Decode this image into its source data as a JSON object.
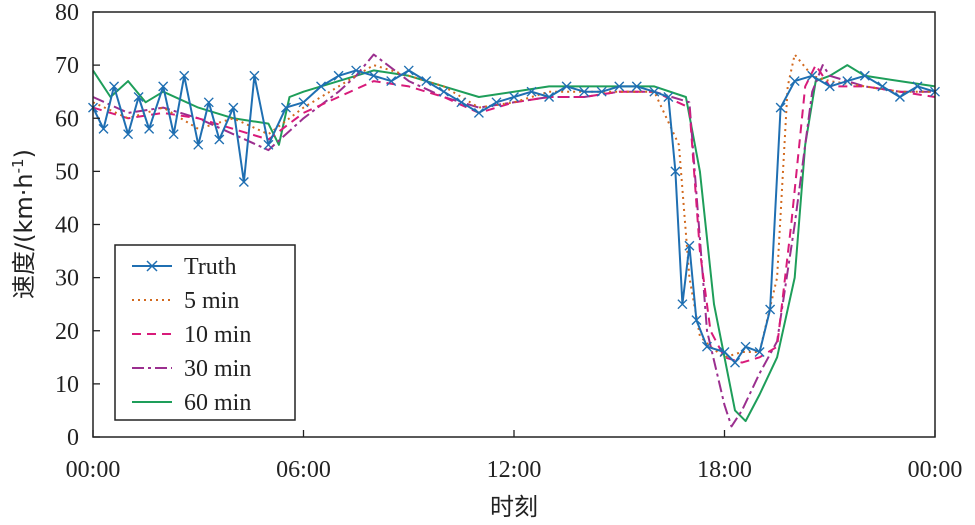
{
  "chart_data": {
    "type": "line",
    "xlabel": "时刻",
    "ylabel": "速度/(km·h⁻¹)",
    "ylabel_parts": {
      "main": "速度/(km·h",
      "sup": "-1",
      "close": ")"
    },
    "xlim": [
      0,
      24
    ],
    "ylim": [
      0,
      80
    ],
    "x_tick_values": [
      0,
      6,
      12,
      18,
      24
    ],
    "x_tick_labels": [
      "00:00",
      "06:00",
      "12:00",
      "18:00",
      "00:00"
    ],
    "y_ticks": [
      0,
      10,
      20,
      30,
      40,
      50,
      60,
      70,
      80
    ],
    "grid": false,
    "legend_position": "lower-left",
    "series": [
      {
        "name": "Truth",
        "color": "#1f6fb2",
        "dash": "",
        "marker": "x",
        "x": [
          0,
          0.3,
          0.6,
          1,
          1.3,
          1.6,
          2,
          2.3,
          2.6,
          3,
          3.3,
          3.6,
          4,
          4.3,
          4.6,
          5,
          5.5,
          6,
          6.5,
          7,
          7.5,
          8,
          8.5,
          9,
          9.5,
          10,
          10.5,
          11,
          11.5,
          12,
          12.5,
          13,
          13.5,
          14,
          14.5,
          15,
          15.5,
          16,
          16.4,
          16.6,
          16.8,
          17,
          17.2,
          17.5,
          18,
          18.3,
          18.6,
          19,
          19.3,
          19.6,
          20,
          20.5,
          21,
          21.5,
          22,
          22.5,
          23,
          23.5,
          24
        ],
        "y": [
          62,
          58,
          66,
          57,
          64,
          58,
          66,
          57,
          68,
          55,
          63,
          56,
          62,
          48,
          68,
          55,
          62,
          63,
          66,
          68,
          69,
          68,
          67,
          69,
          67,
          65,
          63,
          61,
          63,
          64,
          65,
          64,
          66,
          65,
          65,
          66,
          66,
          65,
          64,
          50,
          25,
          36,
          22,
          17,
          16,
          14,
          17,
          16,
          24,
          62,
          67,
          68,
          66,
          67,
          68,
          66,
          64,
          66,
          65
        ]
      },
      {
        "name": "5 min",
        "color": "#d2691e",
        "dash": "2,4",
        "marker": "",
        "x": [
          0,
          1,
          2,
          3,
          4,
          5,
          6,
          7,
          8,
          9,
          10,
          11,
          12,
          13,
          14,
          15,
          16,
          16.7,
          17,
          17.3,
          17.6,
          18,
          18.5,
          19,
          19.5,
          19.8,
          20,
          20.5,
          21,
          22,
          23,
          24
        ],
        "y": [
          63,
          60,
          62,
          58,
          60,
          57,
          62,
          66,
          70,
          68,
          66,
          62,
          63,
          65,
          65,
          65,
          65,
          55,
          30,
          19,
          17,
          15,
          16,
          16,
          30,
          66,
          72,
          68,
          67,
          66,
          65,
          65
        ]
      },
      {
        "name": "10 min",
        "color": "#d81b7a",
        "dash": "9,6",
        "marker": "",
        "x": [
          0,
          1,
          2,
          3,
          4,
          5,
          6,
          7,
          8,
          9,
          10,
          11,
          12,
          13,
          14,
          15,
          16,
          17,
          17.3,
          17.6,
          18,
          18.5,
          19,
          19.5,
          19.9,
          20.3,
          20.6,
          21,
          22,
          23,
          24
        ],
        "y": [
          62,
          60,
          61,
          60,
          58,
          56,
          61,
          64,
          67,
          66,
          64,
          61,
          63,
          64,
          64,
          65,
          65,
          62,
          35,
          20,
          15,
          14,
          15,
          17,
          40,
          66,
          70,
          66,
          66,
          65,
          64
        ]
      },
      {
        "name": "30 min",
        "color": "#9b2f8f",
        "dash": "12,4,3,4",
        "marker": "",
        "x": [
          0,
          1,
          2,
          3,
          4,
          5,
          6,
          7,
          7.5,
          8,
          9,
          10,
          11,
          12,
          13,
          14,
          15,
          16,
          17,
          17.5,
          18,
          18.2,
          18.5,
          19,
          19.5,
          20,
          20.5,
          20.8,
          21,
          22,
          23,
          24
        ],
        "y": [
          64,
          61,
          62,
          60,
          57,
          54,
          60,
          65,
          68,
          72,
          67,
          64,
          62,
          63,
          64,
          64,
          65,
          65,
          63,
          20,
          6,
          2,
          5,
          12,
          18,
          40,
          65,
          70,
          68,
          66,
          65,
          65
        ]
      },
      {
        "name": "60 min",
        "color": "#1e9e5a",
        "dash": "",
        "marker": "",
        "x": [
          0,
          0.5,
          1,
          1.5,
          2,
          3,
          4,
          5,
          5.3,
          5.6,
          6,
          7,
          8,
          9,
          10,
          11,
          12,
          13,
          14,
          15,
          16,
          16.9,
          17.3,
          17.7,
          18,
          18.3,
          18.6,
          19,
          19.5,
          20,
          20.3,
          20.6,
          21,
          21.5,
          22,
          23,
          24
        ],
        "y": [
          69,
          64,
          67,
          63,
          65,
          62,
          60,
          59,
          55,
          64,
          65,
          67,
          69,
          68,
          66,
          64,
          65,
          66,
          66,
          66,
          66,
          64,
          50,
          25,
          15,
          5,
          3,
          8,
          15,
          30,
          55,
          67,
          68,
          70,
          68,
          67,
          66
        ]
      }
    ]
  }
}
